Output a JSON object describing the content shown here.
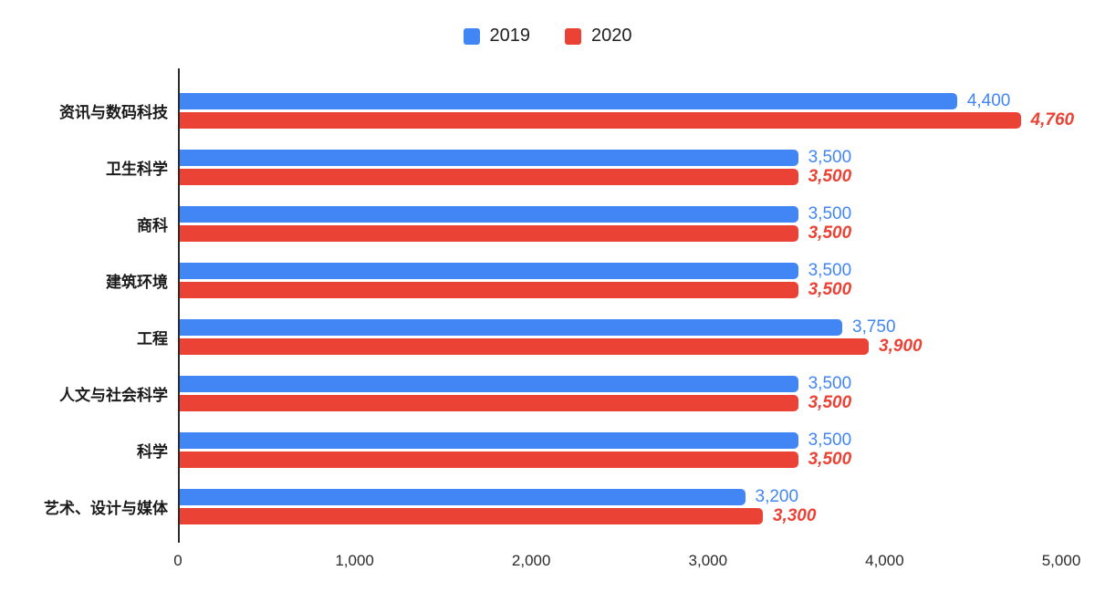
{
  "chart_data": {
    "type": "bar",
    "orientation": "horizontal",
    "title": "",
    "xlabel": "",
    "ylabel": "",
    "grid": false,
    "legend_position": "top-center",
    "categories": [
      "资讯与数码科技",
      "卫生科学",
      "商科",
      "建筑环境",
      "工程",
      "人文与社会科学",
      "科学",
      "艺术、设计与媒体"
    ],
    "series": [
      {
        "name": "2019",
        "color": "#4285F4",
        "values": [
          4400,
          3500,
          3500,
          3500,
          3750,
          3500,
          3500,
          3200
        ],
        "labels": [
          "4,400",
          "3,500",
          "3,500",
          "3,500",
          "3,750",
          "3,500",
          "3,500",
          "3,200"
        ]
      },
      {
        "name": "2020",
        "color": "#EA4335",
        "values": [
          4760,
          3500,
          3500,
          3500,
          3900,
          3500,
          3500,
          3300
        ],
        "labels": [
          "4,760",
          "3,500",
          "3,500",
          "3,500",
          "3,900",
          "3,500",
          "3,500",
          "3,300"
        ]
      }
    ],
    "xlim": [
      0,
      5000
    ],
    "x_ticks": [
      0,
      1000,
      2000,
      3000,
      4000,
      5000
    ],
    "x_tick_labels": [
      "0",
      "1,000",
      "2,000",
      "3,000",
      "4,000",
      "5,000"
    ]
  }
}
